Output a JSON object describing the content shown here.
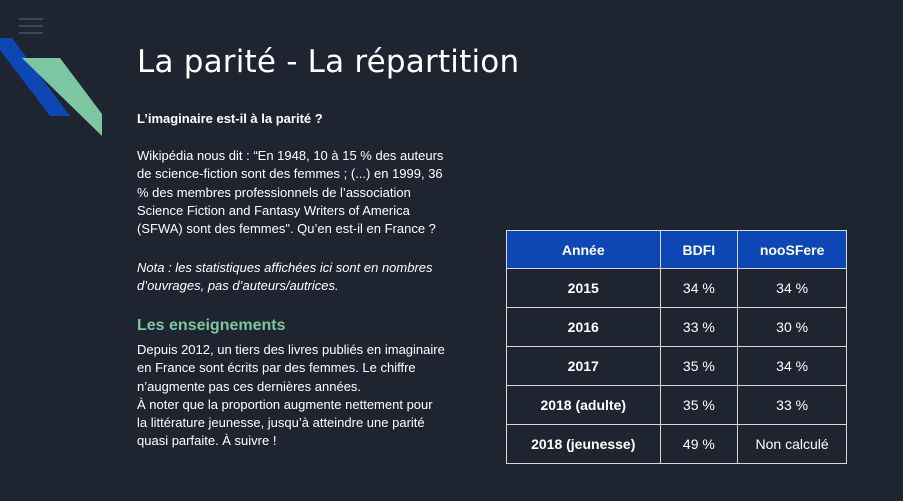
{
  "colors": {
    "background": "#1f2431",
    "accent_green": "#7cc7a2",
    "accent_blue": "#0d47b4"
  },
  "menu": {
    "icon": "hamburger-menu-icon"
  },
  "slide": {
    "title": "La parité - La répartition",
    "question": "L’imaginaire est-il à la parité ?",
    "wiki_lines": [
      "Wikipédia nous dit : “En 1948, 10 à 15 % des auteurs",
      "de science-fiction sont des femmes ; (...) en 1999, 36",
      "% des membres professionnels de l’association",
      "Science Fiction and Fantasy Writers of America",
      "(SFWA) sont des femmes\". Qu’en est-il en France ?"
    ],
    "nota_lines": [
      "Nota : les statistiques affichées ici sont en nombres",
      "d’ouvrages, pas d’auteurs/autrices."
    ],
    "findings_heading": "Les enseignements",
    "findings_lines": [
      "Depuis 2012, un tiers des livres publiés en imaginaire",
      "en France sont écrits par des femmes. Le chiffre",
      "n’augmente pas ces dernières années.",
      "À noter que la proportion augmente nettement pour",
      "la littérature jeunesse, jusqu’à atteindre une parité",
      "quasi parfaite. À suivre !"
    ]
  },
  "table": {
    "headers": [
      "Année",
      "BDFI",
      "nooSFere"
    ],
    "rows": [
      [
        "2015",
        "34 %",
        "34 %"
      ],
      [
        "2016",
        "33 %",
        "30 %"
      ],
      [
        "2017",
        "35 %",
        "34 %"
      ],
      [
        "2018 (adulte)",
        "35 %",
        "33 %"
      ],
      [
        "2018 (jeunesse)",
        "49 %",
        "Non calculé"
      ]
    ]
  }
}
